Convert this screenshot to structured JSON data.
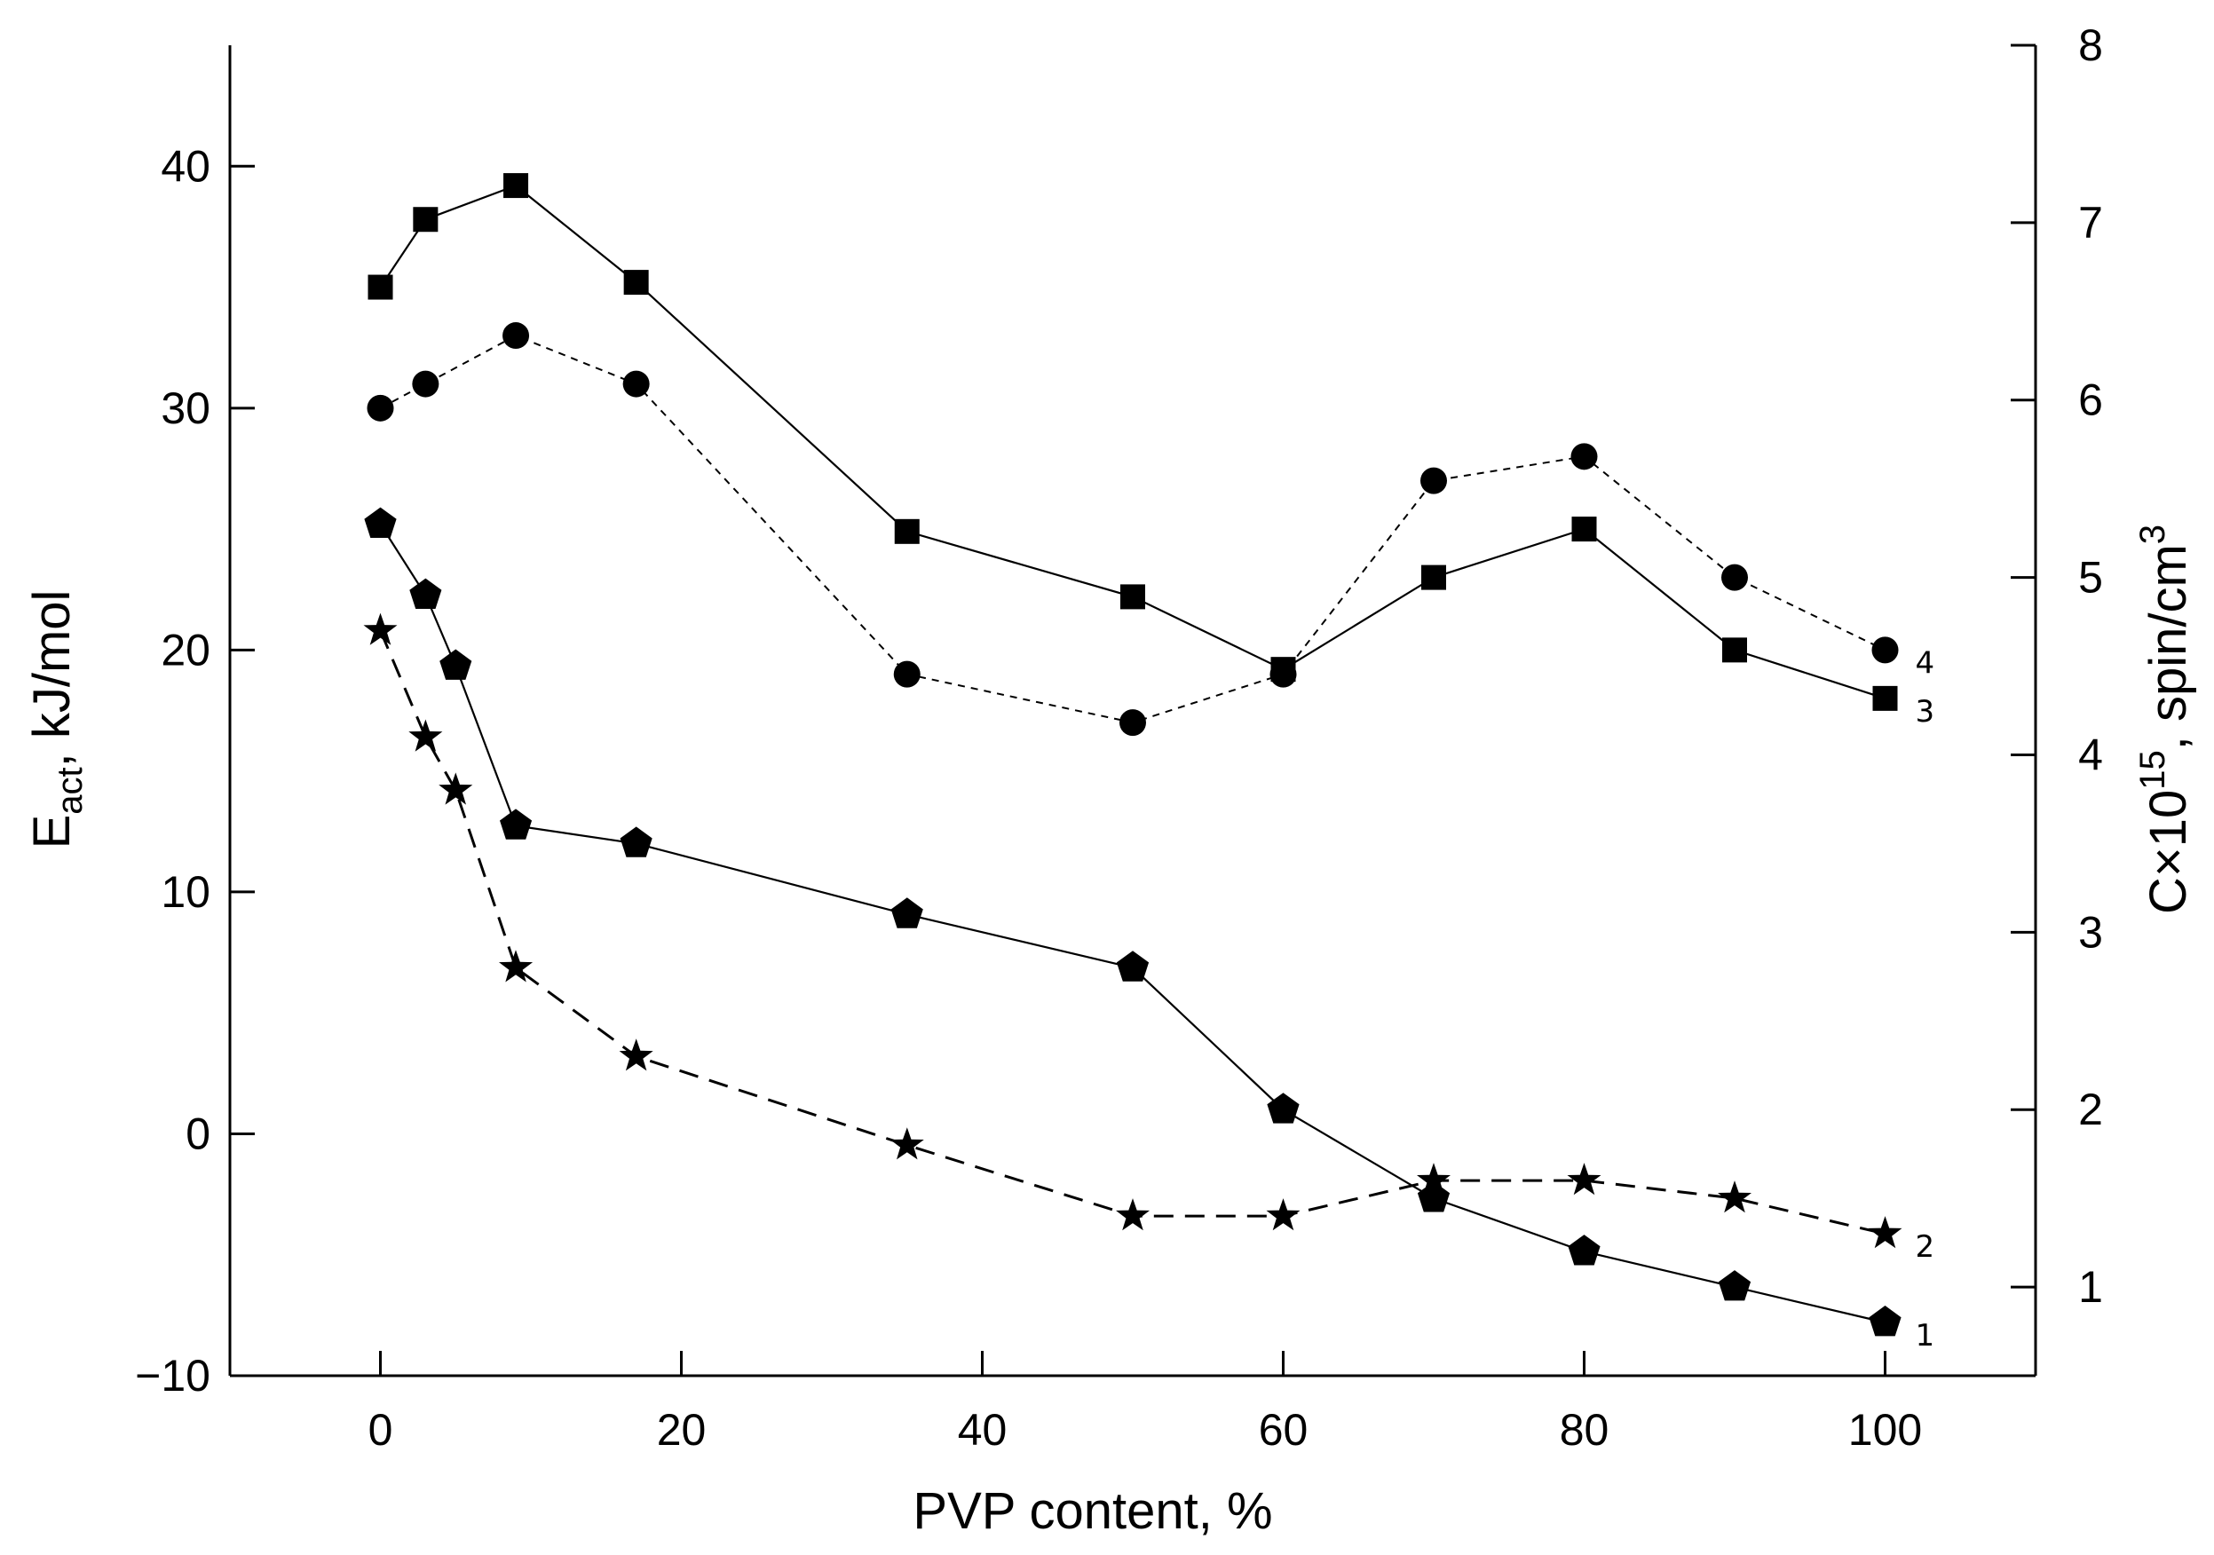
{
  "chart_data": {
    "type": "line",
    "xlabel": "PVP content, %",
    "ylabel_left": {
      "main": "E",
      "sub": "act",
      "rest": ", kJ/mol"
    },
    "ylabel_right": {
      "main": "C×10",
      "sup": "15",
      "mid": ", spin/cm",
      "sup2": "3"
    },
    "xlim": [
      -10,
      110
    ],
    "ylim_left": [
      -10,
      45
    ],
    "ylim_right": [
      0.5,
      8
    ],
    "x_ticks": [
      0,
      20,
      40,
      60,
      80,
      100
    ],
    "x_tick_labels": [
      "0",
      "20",
      "40",
      "60",
      "80",
      "100"
    ],
    "y_left_ticks": [
      -10,
      0,
      10,
      20,
      30,
      40
    ],
    "y_left_tick_labels": [
      "−10",
      "0",
      "10",
      "20",
      "30",
      "40"
    ],
    "y_right_ticks": [
      1,
      2,
      3,
      4,
      5,
      6,
      7,
      8
    ],
    "y_right_tick_labels": [
      "1",
      "2",
      "3",
      "4",
      "5",
      "6",
      "7",
      "8"
    ],
    "grid": false,
    "legend": "none",
    "series": [
      {
        "label": "1",
        "axis": "right",
        "marker": "pentagon",
        "line": "solid",
        "x": [
          0,
          3,
          5,
          9,
          17,
          35,
          50,
          60,
          70,
          80,
          90,
          100
        ],
        "y": [
          5.3,
          4.9,
          4.5,
          3.6,
          3.5,
          3.1,
          2.8,
          2.0,
          1.5,
          1.2,
          1.0,
          0.8
        ]
      },
      {
        "label": "2",
        "axis": "right",
        "marker": "star",
        "line": "dashed",
        "x": [
          0,
          3,
          5,
          9,
          17,
          35,
          50,
          60,
          70,
          80,
          90,
          100
        ],
        "y": [
          4.7,
          4.1,
          3.8,
          2.8,
          2.3,
          1.8,
          1.4,
          1.4,
          1.6,
          1.6,
          1.5,
          1.3
        ]
      },
      {
        "label": "3",
        "axis": "left",
        "marker": "square",
        "line": "solid",
        "x": [
          0,
          3,
          9,
          17,
          35,
          50,
          60,
          70,
          80,
          90,
          100
        ],
        "y": [
          35,
          37.8,
          39.2,
          35.2,
          24.9,
          22.2,
          19.2,
          23,
          25,
          20,
          18
        ]
      },
      {
        "label": "4",
        "axis": "left",
        "marker": "circle",
        "line": "dotted",
        "x": [
          0,
          3,
          9,
          17,
          35,
          50,
          60,
          70,
          80,
          90,
          100
        ],
        "y": [
          30,
          31,
          33,
          31,
          19,
          17,
          19,
          27,
          28,
          23,
          20
        ]
      }
    ]
  }
}
